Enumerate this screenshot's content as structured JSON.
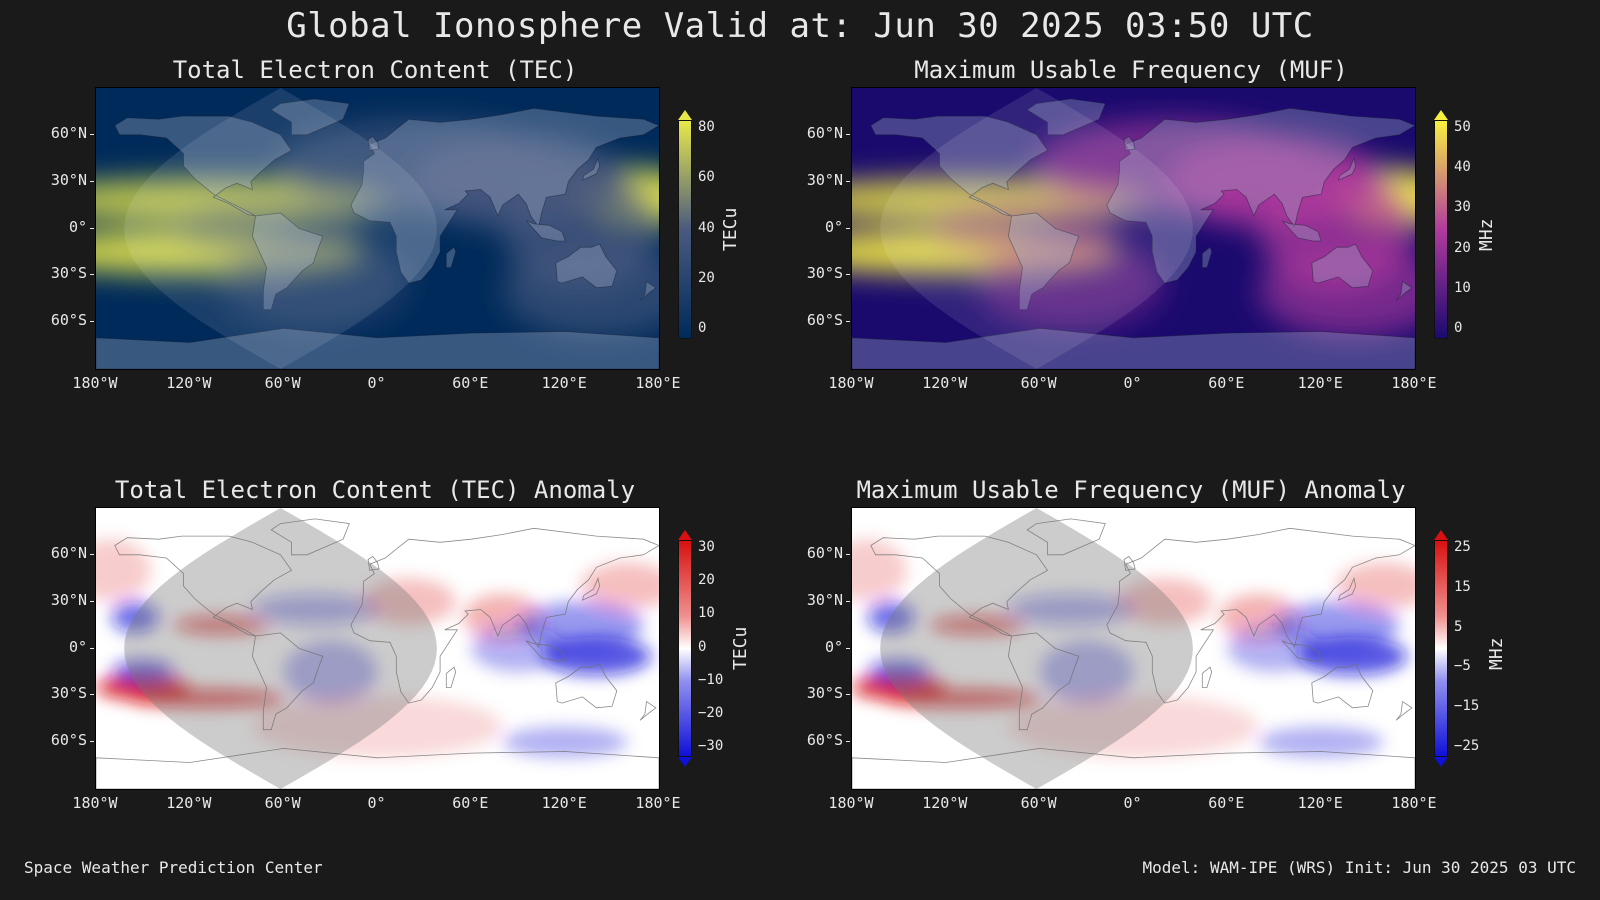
{
  "title": "Global Ionosphere Valid at: Jun 30 2025 03:50 UTC",
  "footer": {
    "left": "Space Weather Prediction Center",
    "right": "Model: WAM-IPE (WRS) Init: Jun 30 2025 03 UTC"
  },
  "lat_labels": [
    "60°N",
    "30°N",
    "0°",
    "30°S",
    "60°S"
  ],
  "lon_labels": [
    "180°W",
    "120°W",
    "60°W",
    "0°",
    "60°E",
    "120°E",
    "180°E"
  ],
  "panels": {
    "tec": {
      "title": "Total Electron Content (TEC)",
      "unit": "TECu",
      "ticks": [
        "80",
        "60",
        "40",
        "20",
        "0"
      ],
      "colors": {
        "low": "#002a5a",
        "mid": "#4a5a80",
        "high": "#e8e84a"
      }
    },
    "muf": {
      "title": "Maximum Usable Frequency (MUF)",
      "unit": "MHz",
      "ticks": [
        "50",
        "40",
        "30",
        "20",
        "10",
        "0"
      ],
      "colors": {
        "low": "#1a0a6e",
        "mid": "#b23a9e",
        "high": "#f8f040"
      }
    },
    "tec_anom": {
      "title": "Total Electron Content (TEC) Anomaly",
      "unit": "TECu",
      "ticks": [
        "30",
        "20",
        "10",
        "0",
        "−10",
        "−20",
        "−30"
      ],
      "colors": {
        "neg": "#1010d8",
        "zero": "#ffffff",
        "pos": "#d81010"
      }
    },
    "muf_anom": {
      "title": "Maximum Usable Frequency (MUF) Anomaly",
      "unit": "MHz",
      "ticks": [
        "25",
        "15",
        "5",
        "−5",
        "−15",
        "−25"
      ],
      "colors": {
        "neg": "#1010d8",
        "zero": "#ffffff",
        "pos": "#d81010"
      }
    }
  }
}
